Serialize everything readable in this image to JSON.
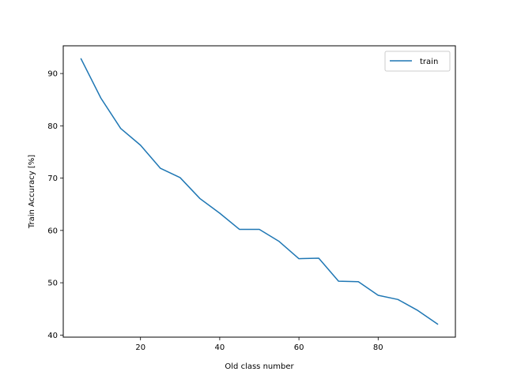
{
  "chart_data": {
    "type": "line",
    "title": "",
    "xlabel": "Old class number",
    "ylabel": "Train Accuracy [%]",
    "xlim": [
      0.5,
      99.5
    ],
    "ylim": [
      39.6,
      95.3
    ],
    "xticks": [
      20,
      40,
      60,
      80
    ],
    "yticks": [
      40,
      50,
      60,
      70,
      80,
      90
    ],
    "grid": false,
    "legend_position": "upper right",
    "series": [
      {
        "name": "train",
        "color": "#1f77b4",
        "x": [
          5,
          10,
          15,
          20,
          25,
          30,
          35,
          40,
          45,
          50,
          55,
          60,
          65,
          70,
          75,
          80,
          85,
          90,
          95
        ],
        "y": [
          92.8,
          85.3,
          79.5,
          76.3,
          71.9,
          70.1,
          66.1,
          63.3,
          60.2,
          60.2,
          57.9,
          54.6,
          54.7,
          50.3,
          50.2,
          47.6,
          46.8,
          44.7,
          42.1
        ]
      }
    ]
  }
}
